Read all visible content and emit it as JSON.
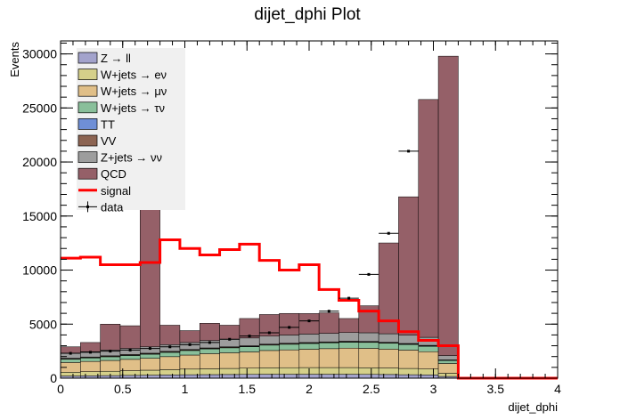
{
  "chart_data": {
    "type": "bar",
    "title": "dijet_dphi Plot",
    "xlabel": "dijet_dphi",
    "ylabel": "Events",
    "xlim": [
      0,
      4
    ],
    "ylim": [
      0,
      31200
    ],
    "x_ticks": [
      "0",
      "0.5",
      "1",
      "1.5",
      "2",
      "2.5",
      "3",
      "3.5",
      "4"
    ],
    "y_ticks": [
      "0",
      "5000",
      "10000",
      "15000",
      "20000",
      "25000",
      "30000"
    ],
    "bin_edges": [
      0,
      0.16,
      0.32,
      0.48,
      0.64,
      0.8,
      0.96,
      1.12,
      1.28,
      1.44,
      1.6,
      1.76,
      1.92,
      2.08,
      2.24,
      2.4,
      2.56,
      2.72,
      2.88,
      3.04,
      3.2,
      3.36,
      3.52,
      3.68,
      3.84,
      4.0
    ],
    "legend_position": "top-left",
    "stack_series": [
      {
        "name": "Z → ll",
        "color": "#a3a3cc",
        "values": [
          200,
          220,
          240,
          260,
          280,
          300,
          320,
          330,
          340,
          350,
          360,
          360,
          360,
          360,
          360,
          350,
          340,
          320,
          300,
          160,
          0,
          0,
          0,
          0,
          0
        ]
      },
      {
        "name": "W+jets → eν",
        "color": "#d5d08a",
        "values": [
          350,
          380,
          400,
          430,
          460,
          490,
          520,
          540,
          560,
          580,
          600,
          610,
          620,
          620,
          620,
          610,
          600,
          580,
          550,
          300,
          0,
          0,
          0,
          0,
          0
        ]
      },
      {
        "name": "W+jets → μν",
        "color": "#e0bf88",
        "values": [
          900,
          950,
          1000,
          1050,
          1100,
          1200,
          1300,
          1400,
          1450,
          1500,
          1600,
          1650,
          1700,
          1750,
          1800,
          1800,
          1750,
          1700,
          1600,
          900,
          0,
          0,
          0,
          0,
          0
        ]
      },
      {
        "name": "W+jets → τν",
        "color": "#89bf9a",
        "values": [
          300,
          320,
          340,
          360,
          380,
          400,
          420,
          440,
          460,
          480,
          500,
          520,
          530,
          540,
          550,
          550,
          540,
          520,
          500,
          280,
          0,
          0,
          0,
          0,
          0
        ]
      },
      {
        "name": "TT",
        "color": "#6f8fd6",
        "values": [
          30,
          30,
          30,
          30,
          30,
          30,
          30,
          30,
          30,
          30,
          30,
          30,
          30,
          30,
          30,
          30,
          30,
          30,
          30,
          20,
          0,
          0,
          0,
          0,
          0
        ]
      },
      {
        "name": "VV",
        "color": "#8c6452",
        "values": [
          60,
          60,
          60,
          60,
          60,
          60,
          60,
          60,
          60,
          60,
          60,
          60,
          60,
          60,
          60,
          60,
          60,
          60,
          60,
          30,
          0,
          0,
          0,
          0,
          0
        ]
      },
      {
        "name": "Z+jets → νν",
        "color": "#9d9d9d",
        "values": [
          460,
          490,
          530,
          560,
          590,
          620,
          650,
          680,
          700,
          720,
          740,
          760,
          780,
          790,
          800,
          800,
          790,
          770,
          740,
          400,
          0,
          0,
          0,
          0,
          0
        ]
      },
      {
        "name": "QCD",
        "color": "#956068",
        "values": [
          600,
          850,
          2400,
          2100,
          15100,
          1800,
          1100,
          1600,
          1300,
          1800,
          2000,
          2000,
          1900,
          1900,
          1300,
          2500,
          8400,
          12800,
          22000,
          27700,
          0,
          0,
          0,
          0,
          0
        ]
      }
    ],
    "signal": {
      "name": "signal",
      "color": "#ff0000",
      "values": [
        11100,
        11200,
        10500,
        10500,
        10700,
        12800,
        12000,
        11400,
        11900,
        12400,
        10900,
        10000,
        10500,
        8200,
        7200,
        6200,
        5300,
        4300,
        3500,
        3000,
        0,
        0,
        0,
        0,
        0
      ]
    },
    "data": {
      "name": "data",
      "x": [
        0.08,
        0.24,
        0.4,
        0.56,
        0.72,
        0.88,
        1.04,
        1.2,
        1.36,
        1.52,
        1.68,
        1.84,
        2.0,
        2.16,
        2.32,
        2.48,
        2.64,
        2.8,
        2.96,
        3.12
      ],
      "values": [
        2300,
        2400,
        2500,
        2600,
        2750,
        2900,
        3100,
        3300,
        3600,
        3900,
        4200,
        4700,
        5300,
        6200,
        7400,
        9600,
        13400,
        21000,
        0,
        0
      ],
      "xerr": 0.08
    },
    "legend": [
      {
        "label": "Z → ll",
        "kind": "box",
        "color": "#a3a3cc"
      },
      {
        "label": "W+jets → eν",
        "kind": "box",
        "color": "#d5d08a"
      },
      {
        "label": "W+jets → μν",
        "kind": "box",
        "color": "#e0bf88"
      },
      {
        "label": "W+jets → τν",
        "kind": "box",
        "color": "#89bf9a"
      },
      {
        "label": "TT",
        "kind": "box",
        "color": "#6f8fd6"
      },
      {
        "label": "VV",
        "kind": "box",
        "color": "#8c6452"
      },
      {
        "label": "Z+jets → νν",
        "kind": "box",
        "color": "#9d9d9d"
      },
      {
        "label": "QCD",
        "kind": "box",
        "color": "#956068"
      },
      {
        "label": "signal",
        "kind": "line",
        "color": "#ff0000"
      },
      {
        "label": "data",
        "kind": "marker",
        "color": "#000000"
      }
    ]
  }
}
